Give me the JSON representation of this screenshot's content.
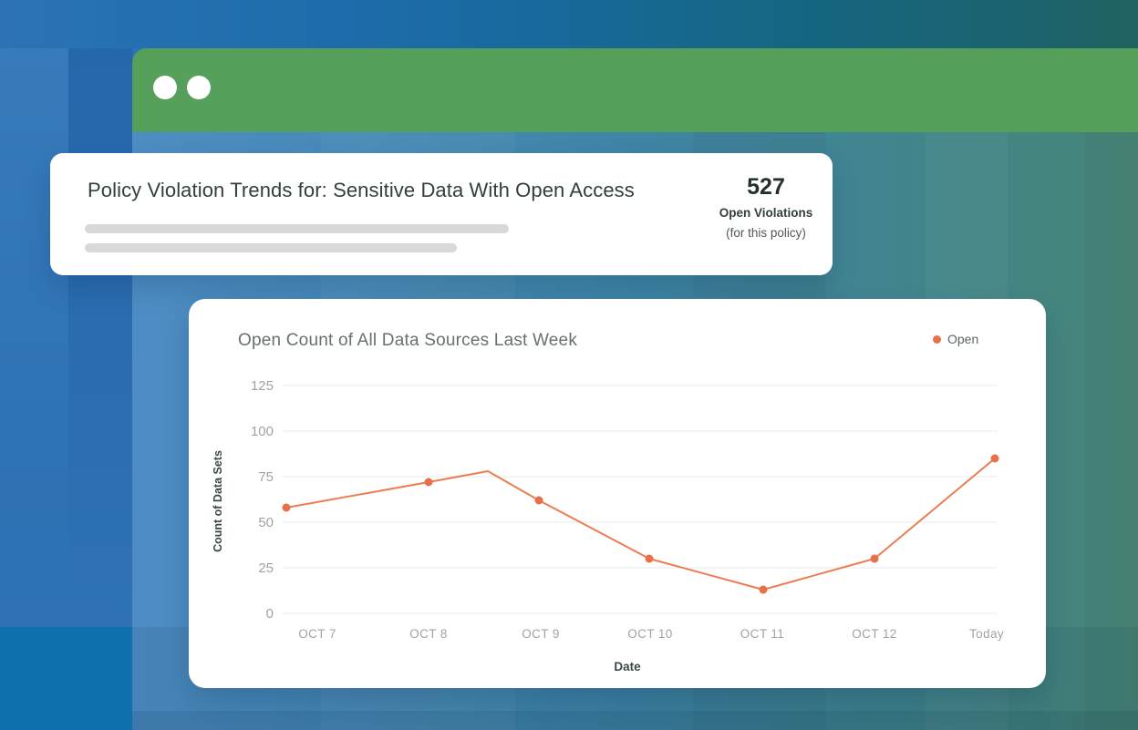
{
  "colors": {
    "header_green": "#57A05C",
    "line_orange": "#ED7C51",
    "marker_orange": "#E7704A",
    "background_blue": "#2E73B5",
    "background_teal": "#488577",
    "card_white": "#FFFFFF",
    "placeholder_gray": "#D8D8DA"
  },
  "window": {
    "control_dots": 2
  },
  "summary_card": {
    "title": "Policy Violation Trends for: Sensitive Data With Open Access",
    "stat_value": "527",
    "stat_label": "Open Violations",
    "stat_sublabel": "(for this policy)"
  },
  "chart_data": {
    "type": "line",
    "title": "Open Count of All Data Sources Last Week",
    "xlabel": "Date",
    "ylabel": "Count of Data Sets",
    "categories": [
      "OCT 7",
      "OCT 8",
      "OCT 9",
      "OCT 10",
      "OCT 11",
      "OCT 12",
      "Today"
    ],
    "series": [
      {
        "name": "Open",
        "color": "#ED7C51",
        "marker_color": "#E7704A",
        "values": [
          58,
          72,
          62,
          30,
          13,
          30,
          85
        ]
      }
    ],
    "extra_vertex": {
      "between": [
        "OCT 8",
        "OCT 9"
      ],
      "value": 78,
      "marker": false
    },
    "ylim": [
      0,
      125
    ],
    "yticks": [
      0,
      25,
      50,
      75,
      100,
      125
    ],
    "grid": "horizontal",
    "legend_position": "top-right",
    "tick_color": "#9EA3A8",
    "grid_color": "#ECEDEE",
    "axis_title_color": "#3B4748"
  }
}
